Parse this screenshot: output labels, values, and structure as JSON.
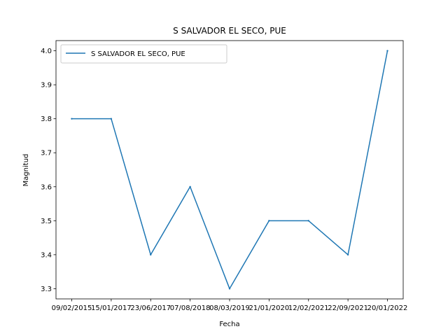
{
  "chart_data": {
    "type": "line",
    "title": "S SALVADOR EL SECO, PUE",
    "xlabel": "Fecha",
    "ylabel": "Magnitud",
    "categories": [
      "09/02/2015",
      "15/01/2017",
      "23/06/2017",
      "07/08/2018",
      "08/03/2019",
      "21/01/2020",
      "12/02/2021",
      "22/09/2021",
      "20/01/2022"
    ],
    "series": [
      {
        "name": "S SALVADOR EL SECO, PUE",
        "values": [
          3.8,
          3.8,
          3.4,
          3.6,
          3.3,
          3.5,
          3.5,
          3.4,
          4.0
        ],
        "color": "#1f77b4"
      }
    ],
    "ylim": [
      3.27,
      4.03
    ],
    "yticks": [
      3.3,
      3.4,
      3.5,
      3.6,
      3.7,
      3.8,
      3.9,
      4.0
    ],
    "ytick_labels": [
      "3.3",
      "3.4",
      "3.5",
      "3.6",
      "3.7",
      "3.8",
      "3.9",
      "4.0"
    ],
    "grid": false,
    "legend_position": "upper-left"
  }
}
